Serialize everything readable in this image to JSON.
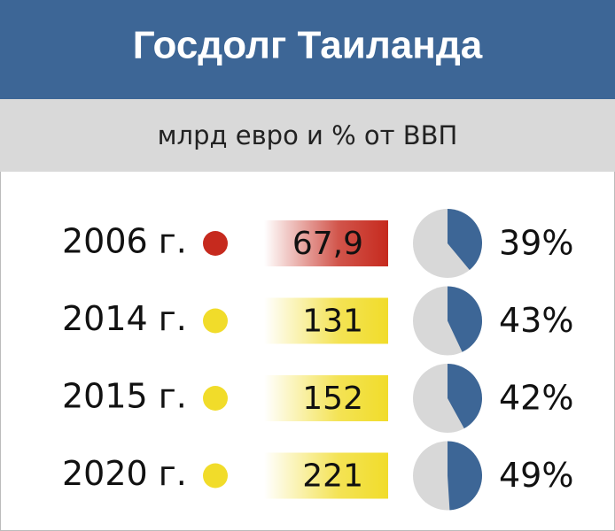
{
  "header": {
    "title": "Госдолг Таиланда",
    "subtitle": "млрд евро и % от ВВП"
  },
  "pie_colors": {
    "share": "#3d6696",
    "rest": "#d8d8d8"
  },
  "rows": [
    {
      "year": "2006 г.",
      "color": "#c62a1e",
      "value": "67,9",
      "share": 39,
      "share_label": "39%"
    },
    {
      "year": "2014 г.",
      "color": "#f1dc2a",
      "value": "131",
      "share": 43,
      "share_label": "43%"
    },
    {
      "year": "2015 г.",
      "color": "#f1dc2a",
      "value": "152",
      "share": 42,
      "share_label": "42%"
    },
    {
      "year": "2020 г.",
      "color": "#f1dc2a",
      "value": "221",
      "share": 49,
      "share_label": "49%"
    }
  ]
}
